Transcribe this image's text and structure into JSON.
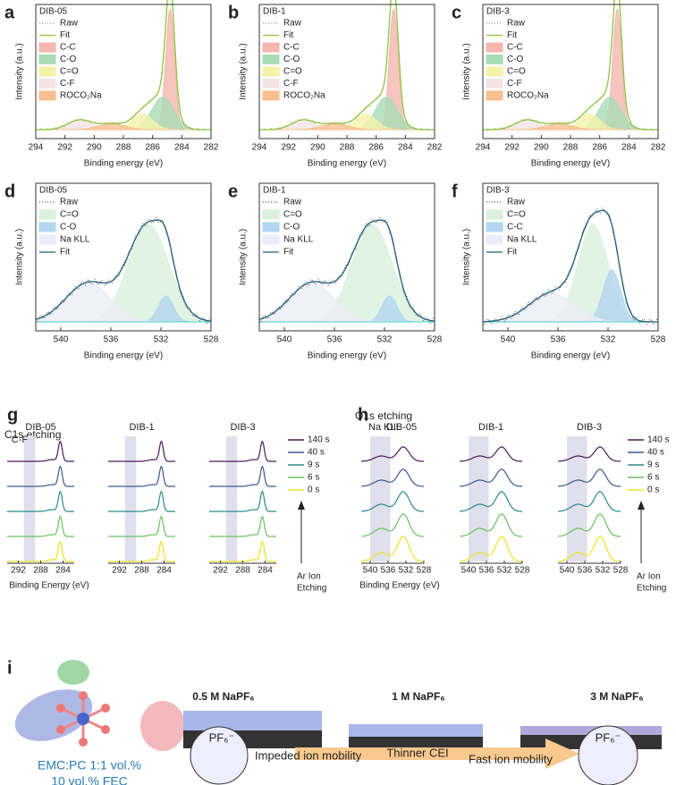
{
  "spectra": [
    {
      "letter": "a",
      "sample": "DIB-05",
      "y_label": "Intensity (a.u.)",
      "x_label": "Binding energy (eV)",
      "xlim": [
        294,
        282
      ],
      "xticks": [
        294,
        292,
        290,
        288,
        286,
        284,
        282
      ],
      "legend": [
        {
          "name": "Raw",
          "color": "#9a9a9a"
        },
        {
          "name": "Fit",
          "color": "#8dc63f"
        },
        {
          "name": "C-C",
          "color": "#f4b6ad"
        },
        {
          "name": "C-O",
          "color": "#a9dcb6"
        },
        {
          "name": "C=O",
          "color": "#f5f2aa"
        },
        {
          "name": "C-F",
          "color": "#f3e3e5"
        },
        {
          "name": "ROCO₂Na",
          "color": "#f9bf8f"
        }
      ]
    },
    {
      "letter": "b",
      "sample": "DIB-1",
      "y_label": "Intensity (a.u.)",
      "x_label": "Binding energy (eV)",
      "xlim": [
        294,
        282
      ],
      "xticks": [
        294,
        292,
        290,
        288,
        286,
        284,
        282
      ],
      "legend": [
        {
          "name": "Raw",
          "color": "#9a9a9a"
        },
        {
          "name": "Fit",
          "color": "#8dc63f"
        },
        {
          "name": "C-C",
          "color": "#f4b6ad"
        },
        {
          "name": "C-O",
          "color": "#a9dcb6"
        },
        {
          "name": "C=O",
          "color": "#f5f2aa"
        },
        {
          "name": "C-F",
          "color": "#f3e3e5"
        },
        {
          "name": "ROCO₂Na",
          "color": "#f9bf8f"
        }
      ]
    },
    {
      "letter": "c",
      "sample": "DIB-3",
      "y_label": "Intensity (a.u.)",
      "x_label": "Binding energy (eV)",
      "xlim": [
        294,
        282
      ],
      "xticks": [
        294,
        292,
        290,
        288,
        286,
        284,
        282
      ],
      "legend": [
        {
          "name": "Raw",
          "color": "#9a9a9a"
        },
        {
          "name": "Fit",
          "color": "#8dc63f"
        },
        {
          "name": "C-C",
          "color": "#f4b6ad"
        },
        {
          "name": "C-O",
          "color": "#a9dcb6"
        },
        {
          "name": "C=O",
          "color": "#f5f2aa"
        },
        {
          "name": "C-F",
          "color": "#f3e3e5"
        },
        {
          "name": "ROCO₂Na",
          "color": "#f9bf8f"
        }
      ]
    },
    {
      "letter": "d",
      "sample": "DIB-05",
      "y_label": "Intensity (a.u.)",
      "x_label": "Binding energy (eV)",
      "xlim": [
        542,
        528
      ],
      "xticks": [
        540,
        536,
        532,
        528
      ],
      "legend": [
        {
          "name": "Raw",
          "color": "#555555"
        },
        {
          "name": "C=O",
          "color": "#d9f1dd"
        },
        {
          "name": "C-O",
          "color": "#b3d6f0"
        },
        {
          "name": "Na KLL",
          "color": "#ececf6"
        },
        {
          "name": "Fit",
          "color": "#1f5f7a"
        }
      ]
    },
    {
      "letter": "e",
      "sample": "DIB-1",
      "y_label": "Intensity (a.u.)",
      "x_label": "Binding energy (eV)",
      "xlim": [
        542,
        528
      ],
      "xticks": [
        540,
        536,
        532,
        528
      ],
      "legend": [
        {
          "name": "Raw",
          "color": "#555555"
        },
        {
          "name": "C=O",
          "color": "#d9f1dd"
        },
        {
          "name": "C-O",
          "color": "#b3d6f0"
        },
        {
          "name": "Na KLL",
          "color": "#ececf6"
        },
        {
          "name": "Fit",
          "color": "#1f5f7a"
        }
      ]
    },
    {
      "letter": "f",
      "sample": "DIB-3",
      "y_label": "Intensity (a.u.)",
      "x_label": "Binding energy (eV)",
      "xlim": [
        542,
        528
      ],
      "xticks": [
        540,
        536,
        532,
        528
      ],
      "legend": [
        {
          "name": "Raw",
          "color": "#555555"
        },
        {
          "name": "C=O",
          "color": "#d9f1dd"
        },
        {
          "name": "C-C",
          "color": "#b3d6f0"
        },
        {
          "name": "Na KLL",
          "color": "#ececf6"
        },
        {
          "name": "Fit",
          "color": "#1f5f7a"
        }
      ]
    }
  ],
  "etching": [
    {
      "letter": "g",
      "title": "C1s etching",
      "shade_label": "C-F",
      "x_label": "Binding Energy (eV)",
      "arrow_label": [
        "Ar Ion",
        "Etching"
      ],
      "samples": [
        {
          "name": "DIB-05",
          "xlim": [
            294,
            282
          ],
          "xticks": [
            292,
            288,
            284
          ]
        },
        {
          "name": "DIB-1",
          "xlim": [
            294,
            282
          ],
          "xticks": [
            292,
            288,
            284
          ]
        },
        {
          "name": "DIB-3",
          "xlim": [
            294,
            282
          ],
          "xticks": [
            292,
            288,
            284
          ]
        }
      ],
      "legend": [
        {
          "name": "140 s",
          "color": "#4a1a5a"
        },
        {
          "name": "40 s",
          "color": "#3a5a8a"
        },
        {
          "name": "9 s",
          "color": "#2a8a8a"
        },
        {
          "name": "6 s",
          "color": "#6ac060"
        },
        {
          "name": "0 s",
          "color": "#f0e020"
        }
      ]
    },
    {
      "letter": "h",
      "title": "O1s etching",
      "shade_label": "Na KLL",
      "x_label": "Binding Energy (eV)",
      "arrow_label": [
        "Ar Ion",
        "Etching"
      ],
      "samples": [
        {
          "name": "DIB-05",
          "xlim": [
            542,
            528
          ],
          "xticks": [
            540,
            536,
            532,
            528
          ]
        },
        {
          "name": "DIB-1",
          "xlim": [
            542,
            528
          ],
          "xticks": [
            540,
            536,
            532,
            528
          ]
        },
        {
          "name": "DIB-3",
          "xlim": [
            542,
            528
          ],
          "xticks": [
            540,
            536,
            532,
            528
          ]
        }
      ],
      "legend": [
        {
          "name": "140 s",
          "color": "#4a1a5a"
        },
        {
          "name": "40 s",
          "color": "#3a5a8a"
        },
        {
          "name": "9 s",
          "color": "#2a8a8a"
        },
        {
          "name": "6 s",
          "color": "#6ac060"
        },
        {
          "name": "0 s",
          "color": "#f0e020"
        }
      ]
    }
  ],
  "scheme": {
    "letter": "i",
    "electrolyte": [
      "EMC:PC 1:1 vol.%",
      "10 vol.% FEC"
    ],
    "conditions": [
      "0.5 M NaPF₆",
      "1 M NaPF₆",
      "3 M NaPF₆"
    ],
    "arrow_text": "Thinner CEI",
    "left_caption": "Impeded ion mobility",
    "right_caption": "Fast ion mobility",
    "anion": "PF₆⁻"
  }
}
